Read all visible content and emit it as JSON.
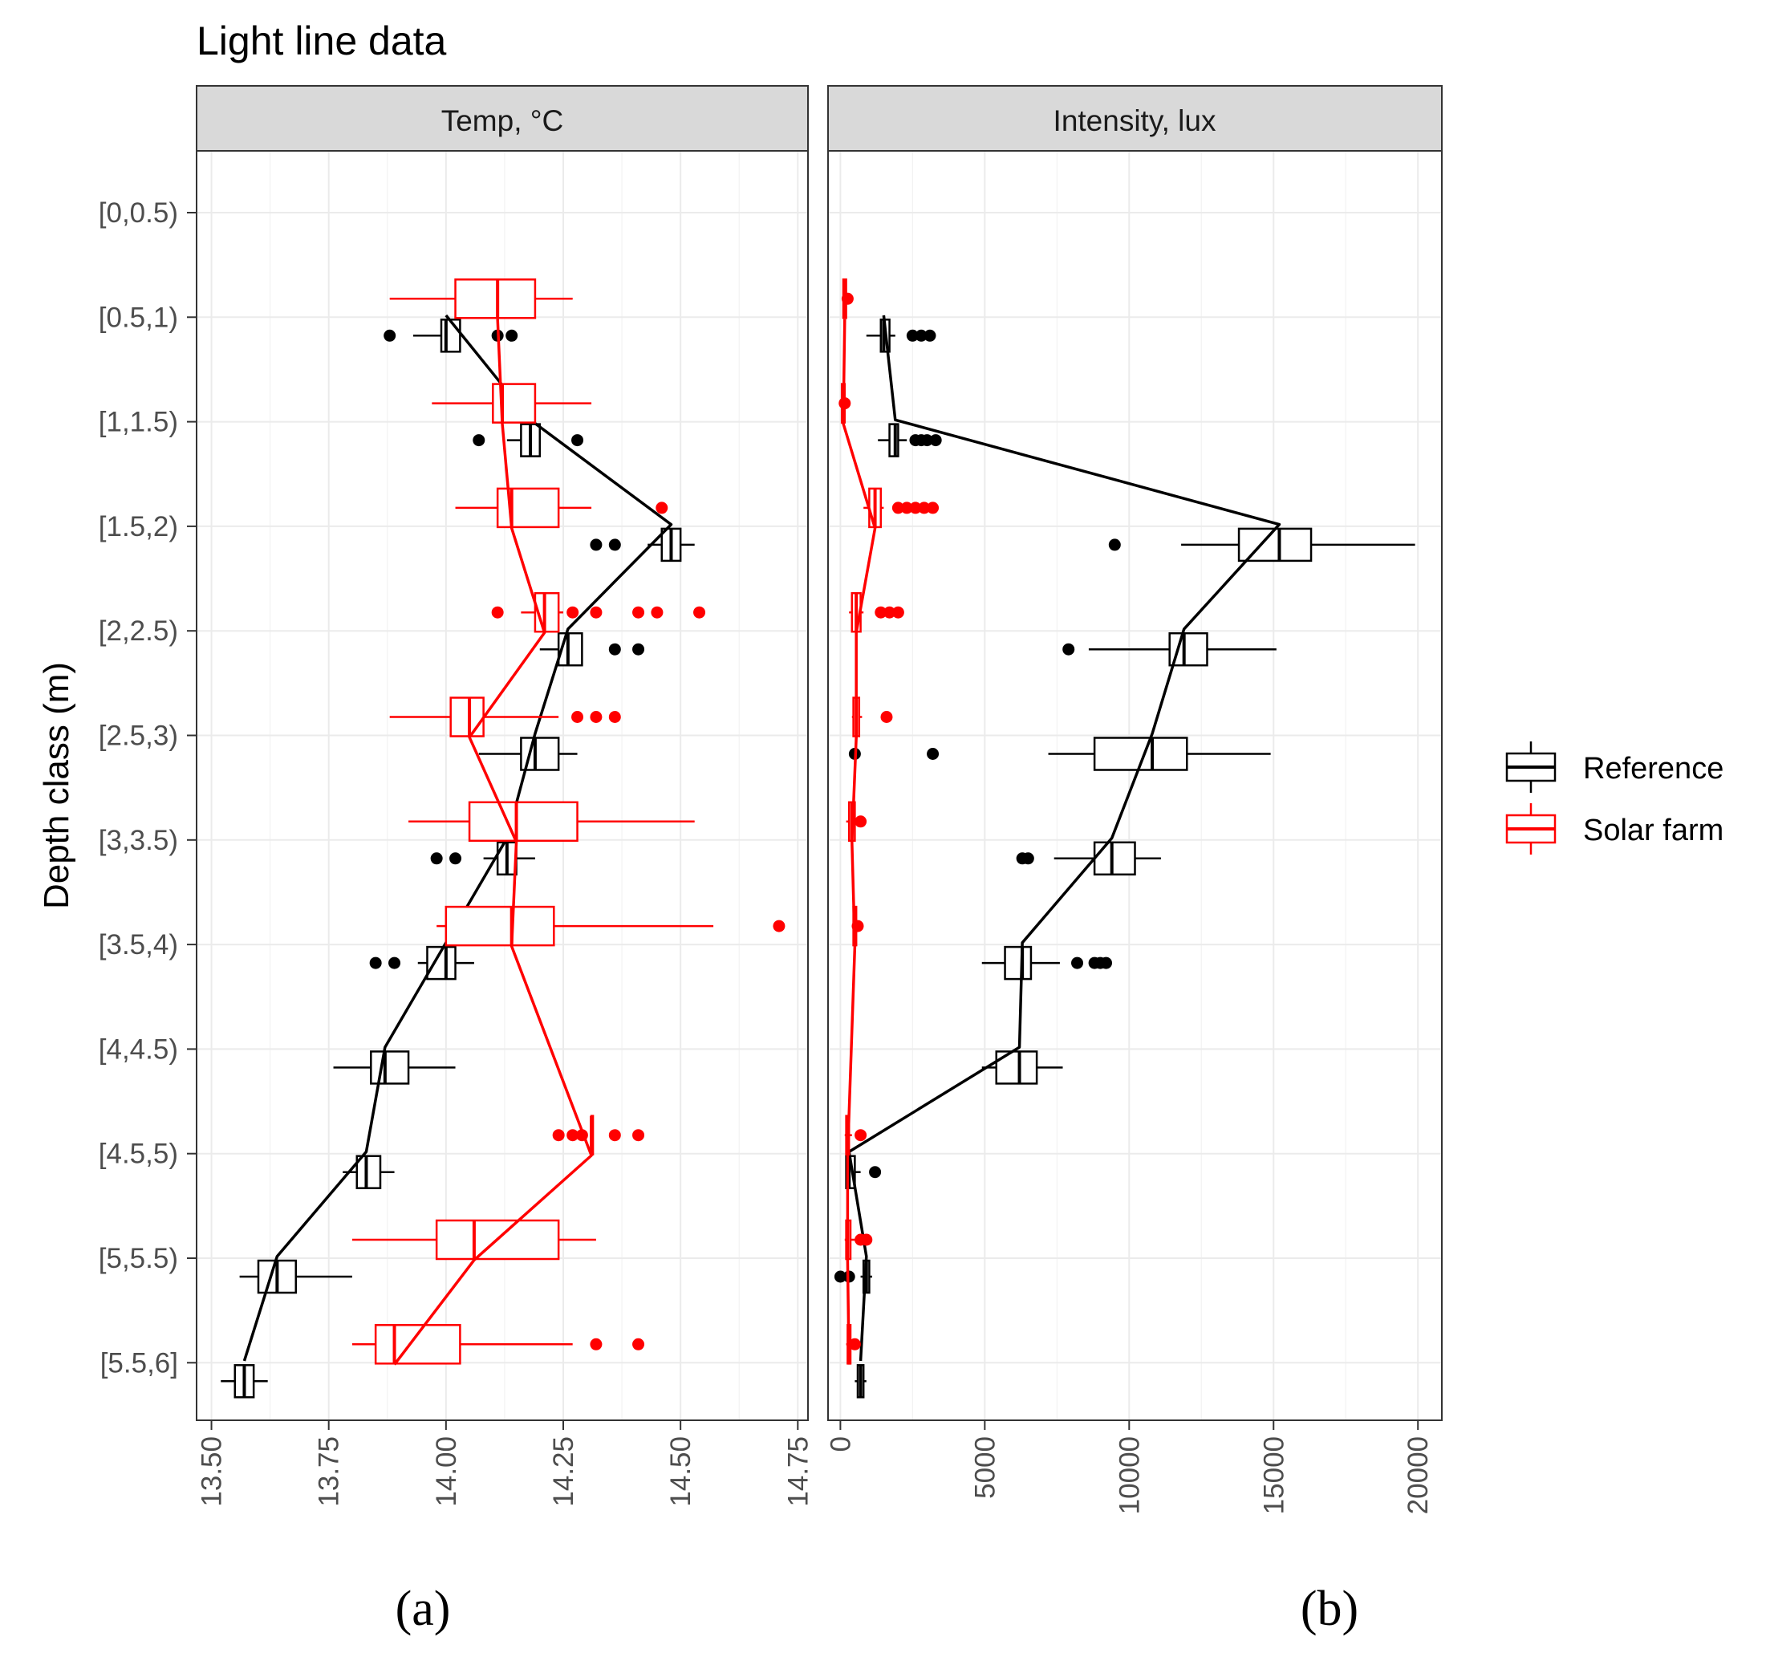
{
  "chart_data": {
    "type": "boxplot",
    "title": "Light line data",
    "ylabel": "Depth class (m)",
    "depth_classes": [
      "[0,0.5)",
      "[0.5,1)",
      "[1,1.5)",
      "[1.5,2)",
      "[2,2.5)",
      "[2.5,3)",
      "[3,3.5)",
      "[3.5,4)",
      "[4,4.5)",
      "[4.5,5)",
      "[5,5.5)",
      "[5.5,6]"
    ],
    "legend": [
      {
        "name": "Reference",
        "color": "#000000"
      },
      {
        "name": "Solar farm",
        "color": "#ff0000"
      }
    ],
    "panels": [
      {
        "facet": "Temp, °C",
        "label": "(a)",
        "xlim": [
          13.47,
          14.77
        ],
        "ticks": [
          13.5,
          13.75,
          14.0,
          14.25,
          14.5,
          14.75
        ],
        "tick_labels": [
          "13.50",
          "13.75",
          "14.00",
          "14.25",
          "14.50",
          "14.75"
        ],
        "series": [
          {
            "name": "Reference",
            "color": "#000000",
            "boxes": [
              {
                "depth": 1,
                "lower": 13.93,
                "q1": 13.99,
                "median": 14.0,
                "q3": 14.03,
                "upper": 14.03,
                "outliers": [
                  13.88,
                  14.11,
                  14.14
                ]
              },
              {
                "depth": 2,
                "lower": 14.13,
                "q1": 14.16,
                "median": 14.18,
                "q3": 14.2,
                "upper": 14.2,
                "outliers": [
                  14.07,
                  14.28
                ]
              },
              {
                "depth": 3,
                "lower": 14.43,
                "q1": 14.46,
                "median": 14.48,
                "q3": 14.5,
                "upper": 14.53,
                "outliers": [
                  14.32,
                  14.36
                ]
              },
              {
                "depth": 4,
                "lower": 14.2,
                "q1": 14.24,
                "median": 14.26,
                "q3": 14.29,
                "upper": 14.29,
                "outliers": [
                  14.36,
                  14.41
                ]
              },
              {
                "depth": 5,
                "lower": 14.07,
                "q1": 14.16,
                "median": 14.19,
                "q3": 14.24,
                "upper": 14.28,
                "outliers": []
              },
              {
                "depth": 6,
                "lower": 14.08,
                "q1": 14.11,
                "median": 14.13,
                "q3": 14.15,
                "upper": 14.19,
                "outliers": [
                  13.98,
                  14.02
                ]
              },
              {
                "depth": 7,
                "lower": 13.94,
                "q1": 13.96,
                "median": 14.0,
                "q3": 14.02,
                "upper": 14.06,
                "outliers": [
                  13.85,
                  13.89
                ]
              },
              {
                "depth": 8,
                "lower": 13.76,
                "q1": 13.84,
                "median": 13.87,
                "q3": 13.92,
                "upper": 14.02,
                "outliers": []
              },
              {
                "depth": 9,
                "lower": 13.78,
                "q1": 13.81,
                "median": 13.83,
                "q3": 13.86,
                "upper": 13.89,
                "outliers": []
              },
              {
                "depth": 10,
                "lower": 13.56,
                "q1": 13.6,
                "median": 13.64,
                "q3": 13.68,
                "upper": 13.8,
                "outliers": []
              },
              {
                "depth": 11,
                "lower": 13.52,
                "q1": 13.55,
                "median": 13.57,
                "q3": 13.59,
                "upper": 13.62,
                "outliers": []
              }
            ]
          },
          {
            "name": "Solar farm",
            "color": "#ff0000",
            "boxes": [
              {
                "depth": 1,
                "lower": 13.88,
                "q1": 14.02,
                "median": 14.11,
                "q3": 14.19,
                "upper": 14.27,
                "outliers": []
              },
              {
                "depth": 2,
                "lower": 13.97,
                "q1": 14.1,
                "median": 14.12,
                "q3": 14.19,
                "upper": 14.31,
                "outliers": []
              },
              {
                "depth": 3,
                "lower": 14.02,
                "q1": 14.11,
                "median": 14.14,
                "q3": 14.24,
                "upper": 14.31,
                "outliers": [
                  14.46
                ]
              },
              {
                "depth": 4,
                "lower": 14.16,
                "q1": 14.19,
                "median": 14.21,
                "q3": 14.24,
                "upper": 14.25,
                "outliers": [
                  14.11,
                  14.27,
                  14.32,
                  14.41,
                  14.45,
                  14.54
                ]
              },
              {
                "depth": 5,
                "lower": 13.88,
                "q1": 14.01,
                "median": 14.05,
                "q3": 14.08,
                "upper": 14.24,
                "outliers": [
                  14.28,
                  14.32,
                  14.36
                ]
              },
              {
                "depth": 6,
                "lower": 13.92,
                "q1": 14.05,
                "median": 14.15,
                "q3": 14.28,
                "upper": 14.53,
                "outliers": []
              },
              {
                "depth": 7,
                "lower": 13.98,
                "q1": 14.0,
                "median": 14.14,
                "q3": 14.23,
                "upper": 14.57,
                "outliers": [
                  14.71
                ]
              },
              {
                "depth": 9,
                "lower": 14.31,
                "q1": 14.31,
                "median": 14.31,
                "q3": 14.31,
                "upper": 14.31,
                "outliers": [
                  14.24,
                  14.27,
                  14.29,
                  14.36,
                  14.41
                ]
              },
              {
                "depth": 10,
                "lower": 13.8,
                "q1": 13.98,
                "median": 14.06,
                "q3": 14.24,
                "upper": 14.32,
                "outliers": []
              },
              {
                "depth": 11,
                "lower": 13.8,
                "q1": 13.85,
                "median": 13.89,
                "q3": 14.03,
                "upper": 14.27,
                "outliers": [
                  14.32,
                  14.41
                ]
              }
            ]
          }
        ]
      },
      {
        "facet": "Intensity, lux",
        "label": "(b)",
        "xlim": [
          -400,
          20800
        ],
        "ticks": [
          0,
          5000,
          10000,
          15000,
          20000
        ],
        "tick_labels": [
          "0",
          "5000",
          "10000",
          "15000",
          "20000"
        ],
        "series": [
          {
            "name": "Reference",
            "color": "#000000",
            "boxes": [
              {
                "depth": 1,
                "lower": 900,
                "q1": 1400,
                "median": 1500,
                "q3": 1700,
                "upper": 1900,
                "outliers": [
                  2500,
                  2800,
                  3100
                ]
              },
              {
                "depth": 2,
                "lower": 1300,
                "q1": 1700,
                "median": 1900,
                "q3": 2000,
                "upper": 2300,
                "outliers": [
                  2600,
                  2800,
                  3000,
                  3300
                ]
              },
              {
                "depth": 3,
                "lower": 11800,
                "q1": 13800,
                "median": 15200,
                "q3": 16300,
                "upper": 19900,
                "outliers": [
                  9500
                ]
              },
              {
                "depth": 4,
                "lower": 8600,
                "q1": 11400,
                "median": 11900,
                "q3": 12700,
                "upper": 15100,
                "outliers": [
                  7900
                ]
              },
              {
                "depth": 5,
                "lower": 7200,
                "q1": 8800,
                "median": 10800,
                "q3": 12000,
                "upper": 14900,
                "outliers": [
                  500,
                  3200
                ]
              },
              {
                "depth": 6,
                "lower": 7400,
                "q1": 8800,
                "median": 9400,
                "q3": 10200,
                "upper": 11100,
                "outliers": [
                  6300,
                  6500
                ]
              },
              {
                "depth": 7,
                "lower": 4900,
                "q1": 5700,
                "median": 6300,
                "q3": 6600,
                "upper": 7600,
                "outliers": [
                  8200,
                  8800,
                  9000,
                  9200
                ]
              },
              {
                "depth": 8,
                "lower": 4900,
                "q1": 5400,
                "median": 6200,
                "q3": 6800,
                "upper": 7700,
                "outliers": []
              },
              {
                "depth": 9,
                "lower": 200,
                "q1": 200,
                "median": 300,
                "q3": 500,
                "upper": 700,
                "outliers": [
                  1200
                ]
              },
              {
                "depth": 10,
                "lower": 700,
                "q1": 800,
                "median": 900,
                "q3": 1000,
                "upper": 1100,
                "outliers": [
                  0,
                  300
                ]
              },
              {
                "depth": 11,
                "lower": 500,
                "q1": 600,
                "median": 700,
                "q3": 800,
                "upper": 900,
                "outliers": []
              }
            ]
          },
          {
            "name": "Solar farm",
            "color": "#ff0000",
            "boxes": [
              {
                "depth": 1,
                "lower": 50,
                "q1": 100,
                "median": 150,
                "q3": 200,
                "upper": 300,
                "outliers": [
                  250
                ]
              },
              {
                "depth": 2,
                "lower": 50,
                "q1": 50,
                "median": 100,
                "q3": 150,
                "upper": 200,
                "outliers": [
                  150
                ]
              },
              {
                "depth": 3,
                "lower": 800,
                "q1": 1000,
                "median": 1200,
                "q3": 1400,
                "upper": 1500,
                "outliers": [
                  2000,
                  2300,
                  2600,
                  2900,
                  3200
                ]
              },
              {
                "depth": 4,
                "lower": 300,
                "q1": 400,
                "median": 550,
                "q3": 700,
                "upper": 800,
                "outliers": [
                  1400,
                  1700,
                  2000
                ]
              },
              {
                "depth": 5,
                "lower": 400,
                "q1": 450,
                "median": 550,
                "q3": 650,
                "upper": 750,
                "outliers": [
                  1600
                ]
              },
              {
                "depth": 6,
                "lower": 200,
                "q1": 300,
                "median": 400,
                "q3": 500,
                "upper": 600,
                "outliers": [
                  700
                ]
              },
              {
                "depth": 7,
                "lower": 400,
                "q1": 450,
                "median": 500,
                "q3": 550,
                "upper": 600,
                "outliers": [
                  600
                ]
              },
              {
                "depth": 9,
                "lower": 150,
                "q1": 200,
                "median": 250,
                "q3": 300,
                "upper": 400,
                "outliers": [
                  700
                ]
              },
              {
                "depth": 10,
                "lower": 150,
                "q1": 200,
                "median": 250,
                "q3": 350,
                "upper": 500,
                "outliers": [
                  700,
                  900
                ]
              },
              {
                "depth": 11,
                "lower": 200,
                "q1": 250,
                "median": 300,
                "q3": 350,
                "upper": 400,
                "outliers": [
                  500
                ]
              }
            ]
          }
        ]
      }
    ]
  }
}
